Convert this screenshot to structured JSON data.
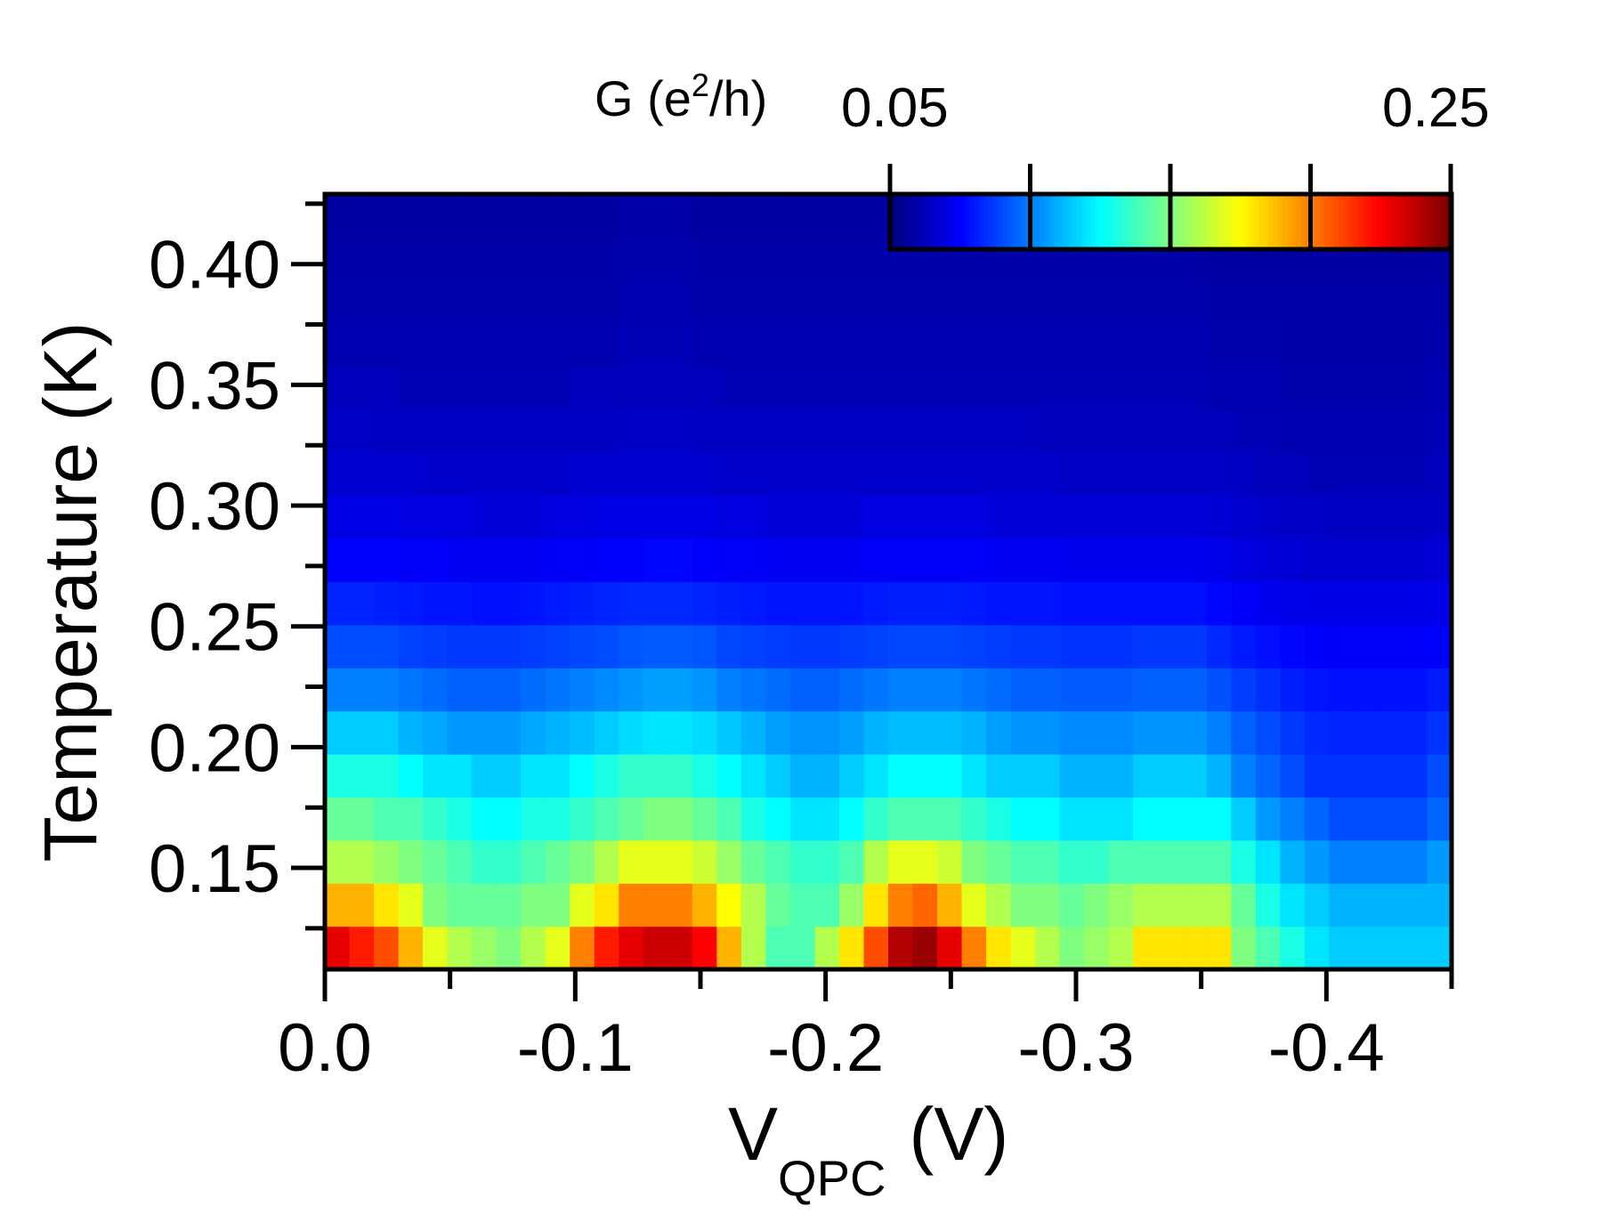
{
  "chart_data": {
    "type": "heatmap",
    "title": "",
    "xlabel": "V",
    "xlabel_sub": "QPC",
    "xlabel_unit": "(V)",
    "ylabel": "Temperature (K)",
    "xlim": [
      0.0,
      -0.45
    ],
    "ylim": [
      0.108,
      0.429
    ],
    "xticks": [
      {
        "value": 0.0,
        "label": "0.0"
      },
      {
        "value": -0.1,
        "label": "-0.1"
      },
      {
        "value": -0.2,
        "label": "-0.2"
      },
      {
        "value": -0.3,
        "label": "-0.3"
      },
      {
        "value": -0.4,
        "label": "-0.4"
      }
    ],
    "yticks": [
      {
        "value": 0.15,
        "label": "0.15"
      },
      {
        "value": 0.2,
        "label": "0.20"
      },
      {
        "value": 0.25,
        "label": "0.25"
      },
      {
        "value": 0.3,
        "label": "0.30"
      },
      {
        "value": 0.35,
        "label": "0.35"
      },
      {
        "value": 0.4,
        "label": "0.40"
      }
    ],
    "colorbar": {
      "label": "G (e",
      "label_sup": "2",
      "label_tail": "/h)",
      "min": 0.05,
      "max": 0.25,
      "min_label": "0.05",
      "max_label": "0.25",
      "colormap": "jet",
      "position": "top-right"
    },
    "x_step": -0.01,
    "temperatures": [
      0.116,
      0.134,
      0.152,
      0.17,
      0.188,
      0.206,
      0.224,
      0.242,
      0.26,
      0.278,
      0.296,
      0.314,
      0.332,
      0.35,
      0.368,
      0.386,
      0.404,
      0.422
    ],
    "row_profiles": [
      {
        "t": 0.116,
        "values": [
          0.23,
          0.22,
          0.21,
          0.19,
          0.17,
          0.16,
          0.155,
          0.15,
          0.16,
          0.17,
          0.2,
          0.22,
          0.23,
          0.235,
          0.235,
          0.225,
          0.19,
          0.16,
          0.14,
          0.14,
          0.16,
          0.18,
          0.21,
          0.24,
          0.245,
          0.23,
          0.2,
          0.18,
          0.17,
          0.16,
          0.15,
          0.155,
          0.16,
          0.18,
          0.18,
          0.18,
          0.18,
          0.15,
          0.14,
          0.13,
          0.12,
          0.115,
          0.115,
          0.115,
          0.115,
          0.115
        ]
      },
      {
        "t": 0.134,
        "values": [
          0.19,
          0.19,
          0.18,
          0.17,
          0.15,
          0.145,
          0.145,
          0.145,
          0.15,
          0.15,
          0.17,
          0.18,
          0.2,
          0.2,
          0.2,
          0.19,
          0.175,
          0.16,
          0.145,
          0.14,
          0.14,
          0.155,
          0.18,
          0.2,
          0.205,
          0.19,
          0.17,
          0.16,
          0.15,
          0.15,
          0.145,
          0.15,
          0.155,
          0.16,
          0.16,
          0.16,
          0.16,
          0.145,
          0.13,
          0.12,
          0.115,
          0.11,
          0.11,
          0.11,
          0.11,
          0.11
        ]
      },
      {
        "t": 0.152,
        "values": [
          0.16,
          0.16,
          0.155,
          0.15,
          0.145,
          0.14,
          0.135,
          0.135,
          0.14,
          0.145,
          0.15,
          0.16,
          0.17,
          0.17,
          0.17,
          0.165,
          0.155,
          0.145,
          0.14,
          0.135,
          0.135,
          0.14,
          0.16,
          0.17,
          0.17,
          0.165,
          0.15,
          0.145,
          0.14,
          0.14,
          0.135,
          0.135,
          0.14,
          0.14,
          0.14,
          0.14,
          0.14,
          0.13,
          0.12,
          0.11,
          0.105,
          0.1,
          0.1,
          0.1,
          0.1,
          0.105
        ]
      },
      {
        "t": 0.17,
        "values": [
          0.145,
          0.145,
          0.14,
          0.14,
          0.135,
          0.13,
          0.125,
          0.125,
          0.13,
          0.13,
          0.135,
          0.14,
          0.145,
          0.15,
          0.15,
          0.145,
          0.14,
          0.13,
          0.125,
          0.12,
          0.12,
          0.125,
          0.135,
          0.14,
          0.14,
          0.14,
          0.135,
          0.13,
          0.125,
          0.125,
          0.12,
          0.12,
          0.12,
          0.125,
          0.125,
          0.125,
          0.125,
          0.115,
          0.105,
          0.1,
          0.095,
          0.09,
          0.09,
          0.09,
          0.09,
          0.095
        ]
      },
      {
        "t": 0.188,
        "values": [
          0.13,
          0.13,
          0.13,
          0.125,
          0.12,
          0.12,
          0.115,
          0.115,
          0.12,
          0.12,
          0.125,
          0.13,
          0.135,
          0.135,
          0.135,
          0.13,
          0.125,
          0.12,
          0.115,
          0.11,
          0.11,
          0.115,
          0.12,
          0.125,
          0.125,
          0.125,
          0.12,
          0.115,
          0.115,
          0.115,
          0.11,
          0.11,
          0.11,
          0.115,
          0.115,
          0.115,
          0.11,
          0.1,
          0.095,
          0.09,
          0.085,
          0.085,
          0.085,
          0.085,
          0.085,
          0.09
        ]
      },
      {
        "t": 0.206,
        "values": [
          0.115,
          0.115,
          0.115,
          0.11,
          0.108,
          0.105,
          0.105,
          0.105,
          0.108,
          0.11,
          0.112,
          0.115,
          0.118,
          0.12,
          0.12,
          0.118,
          0.114,
          0.11,
          0.106,
          0.104,
          0.104,
          0.106,
          0.11,
          0.112,
          0.112,
          0.112,
          0.11,
          0.106,
          0.104,
          0.104,
          0.102,
          0.102,
          0.102,
          0.104,
          0.104,
          0.104,
          0.1,
          0.094,
          0.09,
          0.086,
          0.083,
          0.082,
          0.082,
          0.082,
          0.082,
          0.085
        ]
      },
      {
        "t": 0.224,
        "values": [
          0.1,
          0.1,
          0.1,
          0.098,
          0.096,
          0.094,
          0.094,
          0.094,
          0.096,
          0.098,
          0.1,
          0.102,
          0.104,
          0.106,
          0.106,
          0.104,
          0.1,
          0.098,
          0.096,
          0.094,
          0.094,
          0.096,
          0.098,
          0.1,
          0.1,
          0.1,
          0.098,
          0.096,
          0.094,
          0.094,
          0.093,
          0.093,
          0.093,
          0.094,
          0.094,
          0.094,
          0.091,
          0.087,
          0.084,
          0.081,
          0.079,
          0.078,
          0.078,
          0.078,
          0.078,
          0.08
        ]
      },
      {
        "t": 0.242,
        "values": [
          0.09,
          0.09,
          0.09,
          0.088,
          0.087,
          0.086,
          0.086,
          0.086,
          0.087,
          0.088,
          0.089,
          0.09,
          0.092,
          0.093,
          0.093,
          0.092,
          0.089,
          0.088,
          0.087,
          0.086,
          0.086,
          0.087,
          0.088,
          0.089,
          0.089,
          0.089,
          0.088,
          0.087,
          0.086,
          0.086,
          0.085,
          0.085,
          0.085,
          0.086,
          0.086,
          0.086,
          0.083,
          0.08,
          0.078,
          0.076,
          0.075,
          0.074,
          0.074,
          0.074,
          0.074,
          0.075
        ]
      },
      {
        "t": 0.26,
        "values": [
          0.082,
          0.082,
          0.081,
          0.08,
          0.079,
          0.079,
          0.078,
          0.078,
          0.079,
          0.08,
          0.081,
          0.082,
          0.083,
          0.083,
          0.083,
          0.082,
          0.081,
          0.08,
          0.079,
          0.079,
          0.079,
          0.079,
          0.08,
          0.081,
          0.081,
          0.081,
          0.08,
          0.079,
          0.079,
          0.079,
          0.078,
          0.078,
          0.078,
          0.078,
          0.078,
          0.078,
          0.076,
          0.074,
          0.072,
          0.071,
          0.07,
          0.07,
          0.07,
          0.07,
          0.07,
          0.071
        ]
      },
      {
        "t": 0.278,
        "values": [
          0.075,
          0.075,
          0.075,
          0.074,
          0.074,
          0.073,
          0.073,
          0.073,
          0.073,
          0.074,
          0.074,
          0.075,
          0.075,
          0.076,
          0.076,
          0.075,
          0.074,
          0.074,
          0.073,
          0.073,
          0.073,
          0.073,
          0.074,
          0.074,
          0.074,
          0.074,
          0.074,
          0.073,
          0.073,
          0.073,
          0.072,
          0.072,
          0.072,
          0.072,
          0.072,
          0.072,
          0.071,
          0.069,
          0.068,
          0.067,
          0.066,
          0.066,
          0.066,
          0.066,
          0.066,
          0.067
        ]
      },
      {
        "t": 0.296,
        "values": [
          0.07,
          0.07,
          0.07,
          0.069,
          0.069,
          0.069,
          0.068,
          0.068,
          0.068,
          0.069,
          0.069,
          0.07,
          0.07,
          0.07,
          0.07,
          0.07,
          0.069,
          0.069,
          0.068,
          0.068,
          0.068,
          0.068,
          0.069,
          0.069,
          0.069,
          0.069,
          0.069,
          0.068,
          0.068,
          0.068,
          0.068,
          0.068,
          0.068,
          0.068,
          0.068,
          0.068,
          0.067,
          0.066,
          0.065,
          0.064,
          0.064,
          0.063,
          0.063,
          0.063,
          0.063,
          0.064
        ]
      },
      {
        "t": 0.314,
        "values": [
          0.066,
          0.066,
          0.066,
          0.066,
          0.065,
          0.065,
          0.065,
          0.065,
          0.065,
          0.065,
          0.066,
          0.066,
          0.066,
          0.066,
          0.066,
          0.066,
          0.065,
          0.065,
          0.065,
          0.065,
          0.065,
          0.065,
          0.065,
          0.065,
          0.065,
          0.065,
          0.065,
          0.065,
          0.065,
          0.065,
          0.064,
          0.064,
          0.064,
          0.064,
          0.064,
          0.064,
          0.064,
          0.063,
          0.062,
          0.062,
          0.061,
          0.061,
          0.061,
          0.061,
          0.061,
          0.062
        ]
      },
      {
        "t": 0.332,
        "values": [
          0.064,
          0.064,
          0.063,
          0.063,
          0.063,
          0.063,
          0.063,
          0.063,
          0.063,
          0.063,
          0.063,
          0.063,
          0.064,
          0.064,
          0.064,
          0.063,
          0.063,
          0.063,
          0.063,
          0.063,
          0.063,
          0.063,
          0.063,
          0.063,
          0.063,
          0.063,
          0.063,
          0.063,
          0.063,
          0.062,
          0.062,
          0.062,
          0.062,
          0.062,
          0.062,
          0.062,
          0.062,
          0.061,
          0.061,
          0.06,
          0.06,
          0.06,
          0.06,
          0.06,
          0.06,
          0.061
        ]
      },
      {
        "t": 0.35,
        "values": [
          0.062,
          0.062,
          0.062,
          0.061,
          0.061,
          0.061,
          0.061,
          0.061,
          0.061,
          0.061,
          0.062,
          0.062,
          0.062,
          0.062,
          0.062,
          0.062,
          0.061,
          0.061,
          0.061,
          0.061,
          0.061,
          0.061,
          0.061,
          0.061,
          0.061,
          0.061,
          0.061,
          0.061,
          0.061,
          0.061,
          0.061,
          0.061,
          0.061,
          0.061,
          0.061,
          0.061,
          0.06,
          0.06,
          0.06,
          0.059,
          0.059,
          0.059,
          0.059,
          0.059,
          0.059,
          0.06
        ]
      },
      {
        "t": 0.368,
        "values": [
          0.06,
          0.06,
          0.06,
          0.06,
          0.06,
          0.06,
          0.06,
          0.06,
          0.06,
          0.06,
          0.06,
          0.06,
          0.061,
          0.061,
          0.061,
          0.06,
          0.06,
          0.06,
          0.06,
          0.06,
          0.06,
          0.06,
          0.06,
          0.06,
          0.06,
          0.06,
          0.06,
          0.06,
          0.06,
          0.06,
          0.06,
          0.06,
          0.06,
          0.06,
          0.06,
          0.06,
          0.059,
          0.059,
          0.059,
          0.058,
          0.058,
          0.058,
          0.058,
          0.058,
          0.058,
          0.059
        ]
      },
      {
        "t": 0.386,
        "values": [
          0.059,
          0.059,
          0.059,
          0.059,
          0.059,
          0.059,
          0.059,
          0.059,
          0.059,
          0.059,
          0.059,
          0.059,
          0.06,
          0.06,
          0.06,
          0.059,
          0.059,
          0.059,
          0.059,
          0.059,
          0.059,
          0.059,
          0.059,
          0.059,
          0.059,
          0.059,
          0.059,
          0.059,
          0.059,
          0.059,
          0.059,
          0.059,
          0.059,
          0.059,
          0.059,
          0.059,
          0.058,
          0.058,
          0.058,
          0.058,
          0.058,
          0.058,
          0.058,
          0.058,
          0.058,
          0.058
        ]
      },
      {
        "t": 0.404,
        "values": [
          0.058,
          0.058,
          0.058,
          0.058,
          0.058,
          0.058,
          0.058,
          0.058,
          0.058,
          0.058,
          0.058,
          0.058,
          0.059,
          0.059,
          0.059,
          0.058,
          0.058,
          0.058,
          0.058,
          0.058,
          0.058,
          0.058,
          0.058,
          0.058,
          0.058,
          0.058,
          0.058,
          0.058,
          0.058,
          0.058,
          0.058,
          0.058,
          0.058,
          0.058,
          0.058,
          0.058,
          0.057,
          0.057,
          0.057,
          0.057,
          0.057,
          0.057,
          0.057,
          0.057,
          0.057,
          0.057
        ]
      },
      {
        "t": 0.422,
        "values": [
          0.057,
          0.057,
          0.057,
          0.057,
          0.057,
          0.057,
          0.057,
          0.057,
          0.057,
          0.057,
          0.057,
          0.057,
          0.058,
          0.058,
          0.058,
          0.057,
          0.057,
          0.057,
          0.057,
          0.057,
          0.057,
          0.057,
          0.057,
          0.057,
          0.057,
          0.057,
          0.057,
          0.057,
          0.057,
          0.057,
          0.057,
          0.057,
          0.057,
          0.057,
          0.057,
          0.057,
          0.056,
          0.056,
          0.056,
          0.056,
          0.056,
          0.056,
          0.056,
          0.056,
          0.056,
          0.056
        ]
      }
    ]
  }
}
